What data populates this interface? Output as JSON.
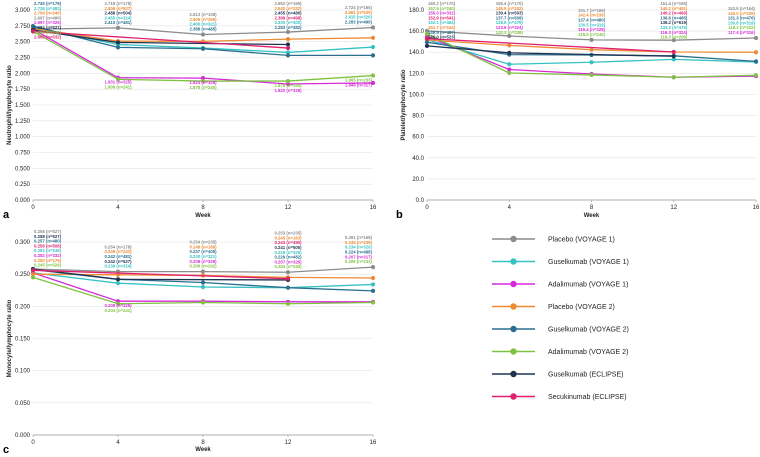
{
  "legend": [
    {
      "key": "pv1",
      "label": "Placebo (VOYAGE 1)",
      "color": "#8c8c8c"
    },
    {
      "key": "gv1",
      "label": "Guselkumab (VOYAGE 1)",
      "color": "#36c2c2"
    },
    {
      "key": "av1",
      "label": "Adalimumab (VOYAGE 1)",
      "color": "#d62ad6"
    },
    {
      "key": "pv2",
      "label": "Placebo (VOYAGE 2)",
      "color": "#ee8a33"
    },
    {
      "key": "gv2",
      "label": "Guselkumab (VOYAGE 2)",
      "color": "#2a6f8f"
    },
    {
      "key": "av2",
      "label": "Adalimumab (VOYAGE 2)",
      "color": "#7fc242"
    },
    {
      "key": "ge",
      "label": "Guselkumab (ECLIPSE)",
      "color": "#1f3350"
    },
    {
      "key": "se",
      "label": "Secukinumab (ECLIPSE)",
      "color": "#e0206e"
    }
  ],
  "chart_data": [
    {
      "id": "a",
      "panel_label": "a",
      "type": "line",
      "xlabel": "Week",
      "ylabel": "Neutrophil/lymphocyte ratio",
      "x": [
        0,
        4,
        8,
        12,
        16
      ],
      "xlim": [
        0,
        16
      ],
      "ylim": [
        0,
        3.0
      ],
      "xticks": [
        "0",
        "4",
        "8",
        "12",
        "16"
      ],
      "yticks": [
        "0.000",
        "0.250",
        "0.500",
        "0.750",
        "1.000",
        "1.250",
        "1.500",
        "1.750",
        "2.000",
        "2.250",
        "2.500",
        "2.750",
        "3.000"
      ],
      "series": [
        {
          "key": "pv1",
          "values": [
            2.697,
            2.718,
            2.613,
            2.652,
            2.724
          ],
          "labels": [
            "2.697 (n=490)",
            "2.718 (n=178)",
            "2.613 (n=108)",
            "2.652 (n=165)",
            "2.724 (n=165)"
          ]
        },
        {
          "key": "gv1",
          "values": [
            2.726,
            2.455,
            2.4,
            2.33,
            2.415
          ],
          "labels": [
            "2.726 (n=483)",
            "2.455 (n=324)",
            "2.400 (n=321)",
            "2.330 (n=400)",
            "2.415 (n=320)"
          ]
        },
        {
          "key": "av1",
          "values": [
            2.697,
            1.931,
            1.924,
            1.832,
            1.849
          ],
          "labels": [
            "2.697 (n=325)",
            "1.931 (n=325)",
            "1.924 (n=328)",
            "1.832 (n=326)",
            "1.849 (n=317)"
          ]
        },
        {
          "key": "pv2",
          "values": [
            2.709,
            2.509,
            2.505,
            2.54,
            2.561
          ],
          "labels": [
            "2.709 (n=240)",
            "2.509 (n=527)",
            "2.505 (n=255)",
            "2.540 (n=232)",
            "2.561 (n=530)"
          ]
        },
        {
          "key": "gv2",
          "values": [
            2.745,
            2.41,
            2.388,
            2.283,
            2.283
          ],
          "labels": [
            "2.745 (n=179)",
            "2.410 (n=481)",
            "2.388 (n=485)",
            "2.283 (n=482)",
            "2.283 (n=490)"
          ]
        },
        {
          "key": "av2",
          "values": [
            2.663,
            1.906,
            1.878,
            1.878,
            1.965
          ],
          "labels": [
            "2.663 (n=246)",
            "1.906 (n=241)",
            "1.878 (n=240)",
            "1.878 (n=240)",
            "1.965 (n=233)"
          ]
        },
        {
          "key": "ge",
          "values": [
            2.684,
            2.488,
            null,
            2.455,
            null
          ],
          "labels": [
            "2.684 (n=527)",
            "2.488 (n=504)",
            "",
            "2.455 (n=480)",
            ""
          ]
        },
        {
          "key": "se",
          "values": [
            2.663,
            null,
            null,
            2.399,
            null
          ],
          "labels": [
            "2.663 (n=532)",
            "",
            "",
            "2.399 (n=498)",
            ""
          ]
        }
      ]
    },
    {
      "id": "b",
      "panel_label": "b",
      "type": "line",
      "xlabel": "Week",
      "ylabel": "Platelet/lymphocyte ratio",
      "x": [
        0,
        4,
        8,
        12,
        16
      ],
      "xlim": [
        0,
        16
      ],
      "ylim": [
        0,
        180
      ],
      "xticks": [
        "0",
        "4",
        "8",
        "12",
        "16"
      ],
      "yticks": [
        "0.0",
        "20.0",
        "40.0",
        "60.0",
        "80.0",
        "100.0",
        "120.0",
        "140.0",
        "160.0",
        "180.0"
      ],
      "series": [
        {
          "key": "pv1",
          "values": [
            160.2,
            155.4,
            151.7,
            151.4,
            153.5
          ],
          "labels": [
            "160.2 (n=170)",
            "155.4 (n=170)",
            "151.7 (n=165)",
            "151.4 (n=165)",
            "153.5 (n=164)"
          ]
        },
        {
          "key": "gv1",
          "values": [
            152.1,
            128.6,
            130.5,
            133.2,
            130.8
          ],
          "labels": [
            "152.1 (n=484)",
            "128.6 (n=479)",
            "130.5 (n=319)",
            "133.2 (n=475)",
            "130.8 (n=319)"
          ]
        },
        {
          "key": "av1",
          "values": [
            155.0,
            123.6,
            119.4,
            116.3,
            117.4
          ],
          "labels": [
            "155.0 (n=332)",
            "123.6 (n=324)",
            "119.4 (n=328)",
            "116.3 (n=324)",
            "117.4 (n=316)"
          ]
        },
        {
          "key": "pv2",
          "values": [
            151.7,
            146.5,
            142.4,
            140.2,
            140.0
          ],
          "labels": [
            "151.7 (n=244)",
            "146.5 (n=242)",
            "142.4 (n=239)",
            "140.2 (n=491)",
            "140.0 (n=229)"
          ]
        },
        {
          "key": "gv2",
          "values": [
            149.5,
            137.7,
            137.4,
            136.6,
            131.3
          ],
          "labels": [
            "149.5 (n=487)",
            "137.7 (n=509)",
            "137.4 (n=480)",
            "136.6 (n=485)",
            "131.3 (n=476)"
          ]
        },
        {
          "key": "av2",
          "values": [
            157.5,
            120.3,
            118.5,
            116.3,
            118.2
          ],
          "labels": [
            "157.5 (n=240)",
            "120.3 (n=239)",
            "118.5 (n=240)",
            "116.3 (n=208)",
            "118.2 (n=232)"
          ]
        },
        {
          "key": "ge",
          "values": [
            146.0,
            139.4,
            null,
            136.2,
            null
          ],
          "labels": [
            "146.0 (n=523)",
            "139.4 (n=503)",
            "",
            "136.2 (n=619)",
            ""
          ]
        },
        {
          "key": "se",
          "values": [
            152.9,
            null,
            null,
            140.2,
            null
          ],
          "labels": [
            "152.9 (n=541)",
            "",
            "",
            "140.2 (n=490)",
            ""
          ]
        }
      ]
    },
    {
      "id": "c",
      "panel_label": "c",
      "type": "line",
      "xlabel": "Week",
      "ylabel": "Monocyte/lymphocyte ratio",
      "x": [
        0,
        4,
        8,
        12,
        16
      ],
      "xlim": [
        0,
        16
      ],
      "ylim": [
        0,
        0.3
      ],
      "xticks": [
        "0",
        "4",
        "8",
        "12",
        "16"
      ],
      "yticks": [
        "0.000",
        "0.050",
        "0.100",
        "0.150",
        "0.200",
        "0.250",
        "0.300"
      ],
      "series": [
        {
          "key": "pv1",
          "values": [
            0.258,
            0.254,
            0.254,
            0.253,
            0.261
          ],
          "labels": [
            "0.258 (n=527)",
            "0.254 (n=178)",
            "0.254 (n=235)",
            "0.253 (n=235)",
            "0.261 (n=168)"
          ]
        },
        {
          "key": "gv1",
          "values": [
            0.252,
            0.236,
            0.23,
            0.229,
            0.234
          ],
          "labels": [
            "0.252 (n=246)",
            "0.236 (n=324)",
            "0.230 (n=321)",
            "0.229 (n=325)",
            "0.234 (n=320)"
          ]
        },
        {
          "key": "av1",
          "values": [
            0.252,
            0.208,
            0.208,
            0.207,
            0.207
          ],
          "labels": [
            "0.252 (n=332)",
            "0.208 (n=325)",
            "0.208 (n=328)",
            "0.207 (n=326)",
            "0.207 (n=317)"
          ]
        },
        {
          "key": "pv2",
          "values": [
            0.25,
            0.249,
            0.248,
            0.245,
            0.244
          ],
          "labels": [
            "0.250 (n=176)",
            "0.249 (n=242)",
            "0.248 (n=168)",
            "0.245 (n=163)",
            "0.244 (n=235)"
          ]
        },
        {
          "key": "gv2",
          "values": [
            0.257,
            0.242,
            0.237,
            0.229,
            0.224
          ],
          "labels": [
            "0.257 (n=480)",
            "0.242 (n=481)",
            "0.237 (n=405)",
            "0.229 (n=482)",
            "0.224 (n=488)"
          ]
        },
        {
          "key": "av2",
          "values": [
            0.245,
            0.204,
            0.206,
            0.204,
            0.206
          ],
          "labels": [
            "0.245 (n=526)",
            "0.204 (n=241)",
            "0.206 (n=242)",
            "0.204 (n=240)",
            "0.206 (n=233)"
          ]
        },
        {
          "key": "ge",
          "values": [
            0.258,
            0.242,
            null,
            0.241,
            null
          ],
          "labels": [
            "0.258 (n=527)",
            "0.242 (n=527)",
            "",
            "0.241 (n=500)",
            ""
          ]
        },
        {
          "key": "se",
          "values": [
            0.256,
            null,
            null,
            0.243,
            null
          ],
          "labels": [
            "0.256 (n=508)",
            "",
            "",
            "0.243 (n=490)",
            ""
          ]
        }
      ]
    }
  ]
}
